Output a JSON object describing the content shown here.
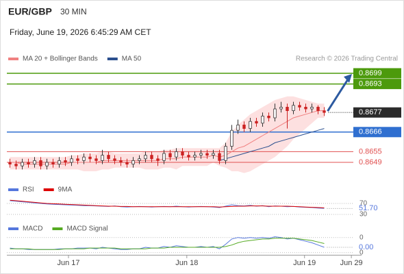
{
  "chart_data": [
    {
      "type": "candlestick",
      "title": "EUR/GBP",
      "interval": "30 MIN",
      "subtitle": "Friday, June 19, 2026 6:45:29 AM CET",
      "source": "Research © 2026 Trading Central",
      "up_color": "#ffffff",
      "down_color": "#cc2222",
      "wick_color": "#333333",
      "xlim": [
        -0.5,
        57
      ],
      "xticks": [
        {
          "value": 9.5,
          "label": "Jun 17"
        },
        {
          "value": 28.7,
          "label": "Jun 18"
        },
        {
          "value": 47.8,
          "label": "Jun 19"
        },
        {
          "value": 55.4,
          "label": "Jun 29"
        }
      ],
      "ylim": [
        0.864,
        0.8704
      ],
      "open": [
        0.8649,
        0.8648,
        0.8647,
        0.8649,
        0.8648,
        0.865,
        0.8647,
        0.8649,
        0.8648,
        0.865,
        0.8649,
        0.8651,
        0.865,
        0.8652,
        0.8651,
        0.865,
        0.8653,
        0.8651,
        0.865,
        0.8649,
        0.8648,
        0.865,
        0.8651,
        0.8653,
        0.8651,
        0.865,
        0.8654,
        0.8652,
        0.8655,
        0.8653,
        0.8652,
        0.8653,
        0.8654,
        0.8653,
        0.8654,
        0.865,
        0.8658,
        0.8667,
        0.867,
        0.8668,
        0.8672,
        0.8671,
        0.8675,
        0.8674,
        0.8679,
        0.868,
        0.8678,
        0.8681,
        0.868,
        0.8679,
        0.868,
        0.8678
      ],
      "high": [
        0.8651,
        0.865,
        0.8651,
        0.8651,
        0.8652,
        0.8652,
        0.8651,
        0.8651,
        0.8652,
        0.8652,
        0.8653,
        0.8653,
        0.8654,
        0.8654,
        0.8653,
        0.8656,
        0.8655,
        0.8653,
        0.8652,
        0.8651,
        0.8652,
        0.8653,
        0.8655,
        0.8655,
        0.8653,
        0.8656,
        0.8656,
        0.8657,
        0.8657,
        0.8655,
        0.8655,
        0.8656,
        0.8656,
        0.8656,
        0.8656,
        0.866,
        0.867,
        0.8673,
        0.8672,
        0.8674,
        0.8674,
        0.8677,
        0.8677,
        0.8682,
        0.8683,
        0.8682,
        0.8683,
        0.8683,
        0.8682,
        0.8682,
        0.8681,
        0.868
      ],
      "low": [
        0.8646,
        0.8645,
        0.8645,
        0.8646,
        0.8646,
        0.8645,
        0.8645,
        0.8646,
        0.8646,
        0.8647,
        0.8647,
        0.8648,
        0.8648,
        0.8649,
        0.8648,
        0.8648,
        0.8649,
        0.8648,
        0.8647,
        0.8646,
        0.8646,
        0.8648,
        0.8649,
        0.8649,
        0.8647,
        0.8648,
        0.865,
        0.865,
        0.8651,
        0.865,
        0.865,
        0.8651,
        0.8651,
        0.8651,
        0.8648,
        0.8648,
        0.8656,
        0.8665,
        0.8666,
        0.8666,
        0.8669,
        0.8669,
        0.8672,
        0.8672,
        0.8677,
        0.8668,
        0.8676,
        0.8678,
        0.8677,
        0.8677,
        0.8676,
        0.8675
      ],
      "close": [
        0.8648,
        0.8647,
        0.8649,
        0.8648,
        0.865,
        0.8647,
        0.8649,
        0.8648,
        0.865,
        0.8649,
        0.8651,
        0.865,
        0.8652,
        0.8651,
        0.865,
        0.8653,
        0.8651,
        0.865,
        0.8649,
        0.8648,
        0.865,
        0.8651,
        0.8653,
        0.8651,
        0.865,
        0.8654,
        0.8652,
        0.8655,
        0.8653,
        0.8652,
        0.8653,
        0.8654,
        0.8653,
        0.8654,
        0.865,
        0.8658,
        0.8667,
        0.867,
        0.8668,
        0.8672,
        0.8671,
        0.8675,
        0.8674,
        0.8679,
        0.868,
        0.8678,
        0.8681,
        0.868,
        0.8679,
        0.868,
        0.8678,
        0.8677
      ],
      "series": [
        {
          "name": "MA 20 + Bollinger Bands",
          "color": "#f08080",
          "band_color": "#fde0e0",
          "values": [
            0.8649,
            0.8649,
            0.8648,
            0.8648,
            0.8648,
            0.8648,
            0.8648,
            0.8648,
            0.8648,
            0.8648,
            0.8649,
            0.8649,
            0.8649,
            0.8649,
            0.8649,
            0.865,
            0.865,
            0.865,
            0.865,
            0.865,
            0.865,
            0.865,
            0.865,
            0.865,
            0.865,
            0.8651,
            0.8651,
            0.8651,
            0.8652,
            0.8652,
            0.8652,
            0.8652,
            0.8652,
            0.8653,
            0.8652,
            0.8653,
            0.8655,
            0.8657,
            0.8658,
            0.866,
            0.8662,
            0.8664,
            0.8666,
            0.8668,
            0.867,
            0.8672,
            0.8674,
            0.8675,
            0.8676,
            0.8677,
            0.8678,
            0.8678
          ],
          "upper": [
            0.8652,
            0.8652,
            0.8652,
            0.8652,
            0.8652,
            0.8652,
            0.8652,
            0.8652,
            0.8652,
            0.8652,
            0.8653,
            0.8653,
            0.8654,
            0.8654,
            0.8654,
            0.8655,
            0.8655,
            0.8654,
            0.8654,
            0.8654,
            0.8654,
            0.8654,
            0.8655,
            0.8655,
            0.8655,
            0.8656,
            0.8656,
            0.8657,
            0.8657,
            0.8657,
            0.8657,
            0.8657,
            0.8657,
            0.8657,
            0.8657,
            0.866,
            0.8666,
            0.867,
            0.8673,
            0.8676,
            0.8678,
            0.868,
            0.8682,
            0.8684,
            0.8685,
            0.8686,
            0.8686,
            0.8685,
            0.8684,
            0.8683,
            0.8682,
            0.8682
          ],
          "lower": [
            0.8645,
            0.8645,
            0.8645,
            0.8645,
            0.8645,
            0.8645,
            0.8645,
            0.8645,
            0.8645,
            0.8645,
            0.8645,
            0.8645,
            0.8644,
            0.8644,
            0.8644,
            0.8645,
            0.8645,
            0.8646,
            0.8646,
            0.8646,
            0.8646,
            0.8646,
            0.8645,
            0.8645,
            0.8645,
            0.8646,
            0.8646,
            0.8645,
            0.8647,
            0.8647,
            0.8647,
            0.8647,
            0.8647,
            0.8649,
            0.8647,
            0.8646,
            0.8644,
            0.8644,
            0.8643,
            0.8644,
            0.8646,
            0.8648,
            0.865,
            0.8652,
            0.8655,
            0.8658,
            0.8662,
            0.8665,
            0.8668,
            0.8671,
            0.8674,
            0.8674
          ]
        },
        {
          "name": "MA 50",
          "color": "#2b4f8e",
          "values": [
            null,
            null,
            null,
            null,
            null,
            null,
            null,
            null,
            null,
            null,
            null,
            null,
            null,
            null,
            null,
            null,
            null,
            null,
            null,
            null,
            null,
            null,
            null,
            null,
            null,
            null,
            null,
            null,
            null,
            null,
            null,
            null,
            null,
            null,
            0.865,
            0.8651,
            0.8652,
            0.8653,
            0.8654,
            0.8655,
            0.8656,
            0.8657,
            0.8658,
            0.866,
            0.8661,
            0.8662,
            0.8663,
            0.8664,
            0.8665,
            0.8666,
            0.8667,
            0.8668
          ]
        }
      ],
      "levels": [
        {
          "value": 0.8699,
          "color": "#4c9a0c",
          "box": true
        },
        {
          "value": 0.8693,
          "color": "#4c9a0c",
          "box": true
        },
        {
          "value": 0.8677,
          "color": "#2b2b2b",
          "box": true,
          "dotted": true
        },
        {
          "value": 0.8666,
          "color": "#2f6fd0",
          "box": true
        },
        {
          "value": 0.8655,
          "color": "#e05050",
          "box": false
        },
        {
          "value": 0.8649,
          "color": "#e05050",
          "box": false
        }
      ],
      "arrow_color": "#2c5aa0"
    },
    {
      "type": "line",
      "ylim": [
        17.5,
        92.5
      ],
      "yticks": [
        70,
        30
      ],
      "series": [
        {
          "name": "RSI",
          "color": "#5577dd",
          "values": [
            80,
            78,
            76,
            74,
            72,
            70,
            68,
            67,
            66,
            65,
            64,
            63,
            62,
            62,
            61,
            60,
            59,
            61,
            58,
            57,
            58,
            59,
            58,
            57,
            58,
            59,
            58,
            60,
            58,
            57,
            58,
            59,
            58,
            57,
            55,
            60,
            65,
            62,
            61,
            63,
            60,
            62,
            58,
            61,
            60,
            58,
            59,
            57,
            56,
            55,
            53,
            51.7
          ],
          "value_labels": [
            null,
            null,
            null,
            null,
            null,
            null,
            null,
            null,
            null,
            null,
            null,
            null,
            null,
            null,
            null,
            null,
            null,
            null,
            null,
            null,
            null,
            null,
            null,
            null,
            null,
            null,
            null,
            null,
            null,
            null,
            null,
            null,
            null,
            null,
            null,
            null,
            null,
            null,
            null,
            null,
            null,
            null,
            null,
            null,
            null,
            null,
            null,
            null,
            null,
            null,
            null,
            "51.70"
          ]
        },
        {
          "name": "9MA",
          "color": "#dd0000",
          "values": [
            82,
            80,
            78,
            76,
            74,
            72,
            70,
            69,
            68,
            67,
            66,
            65,
            64,
            63,
            62,
            61,
            60,
            60,
            59,
            59,
            58,
            58,
            58,
            58,
            58,
            58,
            58,
            58,
            58,
            58,
            58,
            58,
            58,
            58,
            57,
            58,
            59,
            60,
            60,
            61,
            61,
            61,
            60,
            60,
            60,
            60,
            59,
            58,
            57,
            56,
            55,
            54
          ]
        }
      ]
    },
    {
      "type": "line",
      "ylim": [
        -0.0013,
        0.0017
      ],
      "yticks": [
        {
          "value": 0.001,
          "label": "0"
        },
        {
          "value": -0.001,
          "label": "0"
        }
      ],
      "series": [
        {
          "name": "MACD",
          "color": "#5577dd",
          "values": [
            -0.0004,
            -0.0005,
            -0.0005,
            -0.0006,
            -0.0006,
            -0.0006,
            -0.0006,
            -0.0006,
            -0.0005,
            -0.0005,
            -0.0005,
            -0.0004,
            -0.0004,
            -0.0004,
            -0.0005,
            -0.0003,
            -0.0004,
            -0.0005,
            -0.0006,
            -0.0006,
            -0.0005,
            -0.0005,
            -0.0003,
            -0.0004,
            -0.0004,
            -0.0002,
            -0.0003,
            -0.0001,
            -0.0002,
            -0.0003,
            -0.0003,
            -0.0002,
            -0.0003,
            -0.0002,
            -0.0005,
            0.0001,
            0.0008,
            0.001,
            0.0009,
            0.001,
            0.0009,
            0.001,
            0.0009,
            0.0011,
            0.001,
            0.0008,
            0.0009,
            0.0007,
            0.0005,
            0.0003,
            0,
            -0.0003
          ],
          "value_labels": [
            null,
            null,
            null,
            null,
            null,
            null,
            null,
            null,
            null,
            null,
            null,
            null,
            null,
            null,
            null,
            null,
            null,
            null,
            null,
            null,
            null,
            null,
            null,
            null,
            null,
            null,
            null,
            null,
            null,
            null,
            null,
            null,
            null,
            null,
            null,
            null,
            null,
            null,
            null,
            null,
            null,
            null,
            null,
            null,
            null,
            null,
            null,
            null,
            null,
            null,
            null,
            "0.00"
          ]
        },
        {
          "name": "MACD Signal",
          "color": "#55aa22",
          "values": [
            -0.0005,
            -0.0005,
            -0.0005,
            -0.0005,
            -0.0006,
            -0.0006,
            -0.0006,
            -0.0006,
            -0.0006,
            -0.0005,
            -0.0005,
            -0.0005,
            -0.0005,
            -0.0004,
            -0.0004,
            -0.0004,
            -0.0004,
            -0.0004,
            -0.0005,
            -0.0005,
            -0.0005,
            -0.0005,
            -0.0005,
            -0.0004,
            -0.0004,
            -0.0004,
            -0.0003,
            -0.0003,
            -0.0003,
            -0.0003,
            -0.0003,
            -0.0003,
            -0.0003,
            -0.0003,
            -0.0003,
            -0.0002,
            0,
            0.0003,
            0.0005,
            0.0006,
            0.0007,
            0.0008,
            0.0008,
            0.0009,
            0.0009,
            0.0009,
            0.0009,
            0.0008,
            0.0007,
            0.0006,
            0.0004,
            0.0002
          ]
        }
      ]
    }
  ]
}
